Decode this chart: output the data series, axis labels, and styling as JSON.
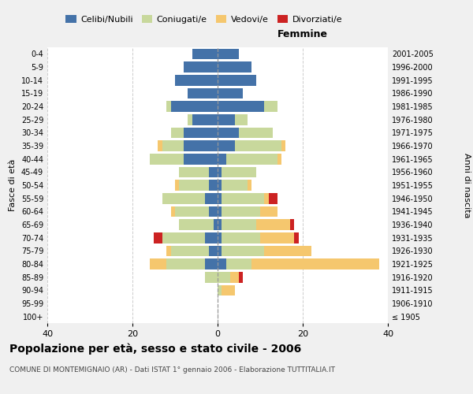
{
  "age_groups": [
    "100+",
    "95-99",
    "90-94",
    "85-89",
    "80-84",
    "75-79",
    "70-74",
    "65-69",
    "60-64",
    "55-59",
    "50-54",
    "45-49",
    "40-44",
    "35-39",
    "30-34",
    "25-29",
    "20-24",
    "15-19",
    "10-14",
    "5-9",
    "0-4"
  ],
  "birth_years": [
    "≤ 1905",
    "1906-1910",
    "1911-1915",
    "1916-1920",
    "1921-1925",
    "1926-1930",
    "1931-1935",
    "1936-1940",
    "1941-1945",
    "1946-1950",
    "1951-1955",
    "1956-1960",
    "1961-1965",
    "1966-1970",
    "1971-1975",
    "1976-1980",
    "1981-1985",
    "1986-1990",
    "1991-1995",
    "1996-2000",
    "2001-2005"
  ],
  "males": {
    "celibi": [
      0,
      0,
      0,
      0,
      3,
      2,
      3,
      1,
      2,
      3,
      2,
      2,
      8,
      8,
      8,
      6,
      11,
      7,
      10,
      8,
      6
    ],
    "coniugati": [
      0,
      0,
      0,
      3,
      9,
      9,
      10,
      8,
      8,
      10,
      7,
      7,
      8,
      5,
      3,
      1,
      1,
      0,
      0,
      0,
      0
    ],
    "vedovi": [
      0,
      0,
      0,
      0,
      4,
      1,
      0,
      0,
      1,
      0,
      1,
      0,
      0,
      1,
      0,
      0,
      0,
      0,
      0,
      0,
      0
    ],
    "divorziati": [
      0,
      0,
      0,
      0,
      0,
      0,
      2,
      0,
      0,
      0,
      0,
      0,
      0,
      0,
      0,
      0,
      0,
      0,
      0,
      0,
      0
    ]
  },
  "females": {
    "nubili": [
      0,
      0,
      0,
      0,
      2,
      1,
      1,
      1,
      1,
      1,
      1,
      1,
      2,
      4,
      5,
      4,
      11,
      6,
      9,
      8,
      5
    ],
    "coniugate": [
      0,
      0,
      1,
      3,
      6,
      10,
      9,
      8,
      9,
      10,
      6,
      8,
      12,
      11,
      8,
      3,
      3,
      0,
      0,
      0,
      0
    ],
    "vedove": [
      0,
      0,
      3,
      2,
      30,
      11,
      8,
      8,
      4,
      1,
      1,
      0,
      1,
      1,
      0,
      0,
      0,
      0,
      0,
      0,
      0
    ],
    "divorziate": [
      0,
      0,
      0,
      1,
      0,
      0,
      1,
      1,
      0,
      2,
      0,
      0,
      0,
      0,
      0,
      0,
      0,
      0,
      0,
      0,
      0
    ]
  },
  "colors": {
    "celibi_nubili": "#4472a8",
    "coniugati": "#c8d89c",
    "vedovi": "#f5c76e",
    "divorziati": "#cc2222"
  },
  "xlim": 40,
  "title": "Popolazione per età, sesso e stato civile - 2006",
  "subtitle": "COMUNE DI MONTEMIGNAIO (AR) - Dati ISTAT 1° gennaio 2006 - Elaborazione TUTTITALIA.IT",
  "ylabel_left": "Fasce di età",
  "ylabel_right": "Anni di nascita",
  "xlabel_femmine": "Femmine",
  "bg_color": "#f0f0f0",
  "plot_bg": "#ffffff",
  "grid_color": "#cccccc"
}
